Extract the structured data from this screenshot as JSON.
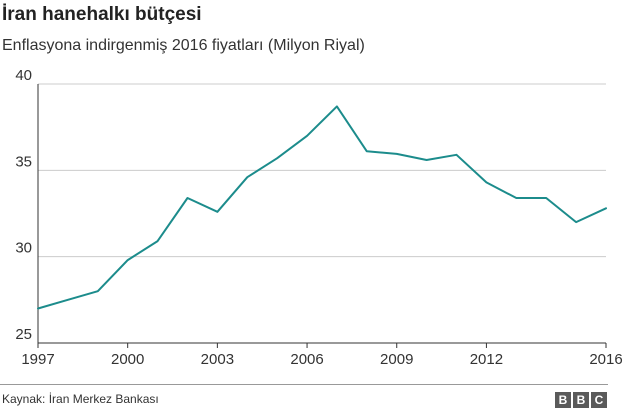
{
  "header": {
    "title": "İran hanehalkı bütçesi",
    "subtitle": "Enflasyona indirgenmiş 2016 fiyatları (Milyon Riyal)"
  },
  "footer": {
    "source": "Kaynak: İran Merkez Bankası",
    "logo_letters": [
      "B",
      "B",
      "C"
    ]
  },
  "colors": {
    "line": "#1c8c8c",
    "grid": "#cccccc",
    "axis": "#333333"
  },
  "chart_data": {
    "type": "line",
    "title": "İran hanehalkı bütçesi",
    "subtitle": "Enflasyona indirgenmiş 2016 fiyatları (Milyon Riyal)",
    "xlabel": "",
    "ylabel": "",
    "xlim": [
      1997,
      2016
    ],
    "ylim": [
      25,
      40
    ],
    "x_ticks": [
      1997,
      2000,
      2003,
      2006,
      2009,
      2012,
      2016
    ],
    "y_ticks": [
      25,
      30,
      35,
      40
    ],
    "grid": true,
    "series": [
      {
        "name": "Hanehalkı bütçesi",
        "x": [
          1997,
          1998,
          1999,
          2000,
          2001,
          2002,
          2003,
          2004,
          2005,
          2006,
          2007,
          2008,
          2009,
          2010,
          2011,
          2012,
          2013,
          2014,
          2015,
          2016
        ],
        "values": [
          27.0,
          27.5,
          28.0,
          29.8,
          30.9,
          33.4,
          32.6,
          34.6,
          35.7,
          37.0,
          38.7,
          36.1,
          35.95,
          35.6,
          35.9,
          34.3,
          33.4,
          33.4,
          32.0,
          32.8
        ]
      }
    ]
  }
}
